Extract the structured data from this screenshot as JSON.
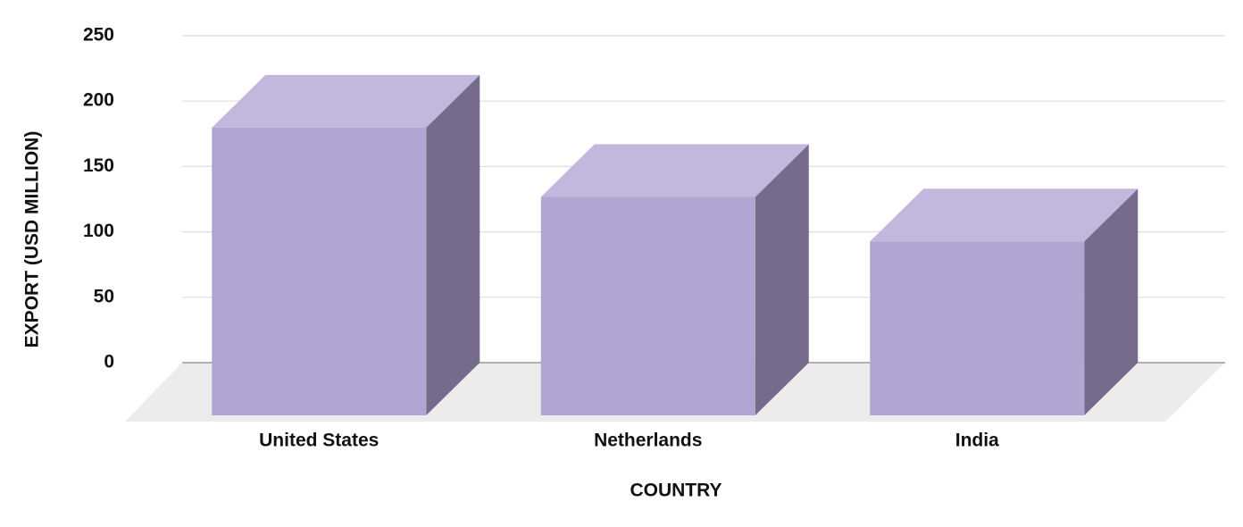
{
  "chart_data": {
    "type": "bar3d",
    "x_label": "COUNTRY",
    "y_label": "EXPORT (USD MILLION)",
    "categories": [
      "United States",
      "Netherlands",
      "India"
    ],
    "values": [
      220,
      167,
      133
    ],
    "color": "#b2a5d4",
    "ylim": [
      0,
      250
    ],
    "yticks": [
      0,
      50,
      100,
      150,
      200,
      250
    ],
    "grid": true
  }
}
